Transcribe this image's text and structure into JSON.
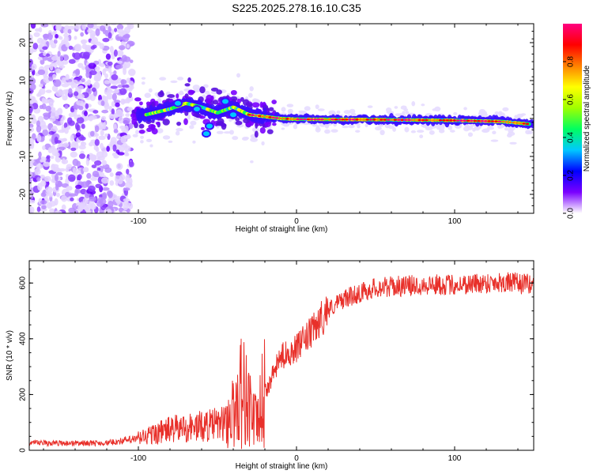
{
  "page_title": "S225.2025.278.16.10.C35",
  "chart_data": [
    {
      "type": "heatmap",
      "title": "S225.2025.278.16.10.C35",
      "xlabel": "Height of straight line (km)",
      "ylabel": "Frequency (Hz)",
      "xlim": [
        -169,
        150
      ],
      "ylim": [
        -25,
        25
      ],
      "x_ticks": [
        -100,
        0,
        100
      ],
      "y_ticks": [
        -20,
        -10,
        0,
        10,
        20
      ],
      "colorbar": {
        "label": "Normalized spectral amplitude",
        "range": [
          0,
          1
        ],
        "ticks": [
          0.0,
          0.2,
          0.4,
          0.6,
          0.8
        ],
        "colors": [
          "#ffffff",
          "#7a00ff",
          "#0000ff",
          "#00c8ff",
          "#00ff60",
          "#a0ff00",
          "#ffff00",
          "#ff8000",
          "#ff0000",
          "#ff0080"
        ]
      },
      "ridge": {
        "description_points_height_km": [
          -100,
          -80,
          -70,
          -60,
          -50,
          -40,
          -30,
          -20,
          -10,
          0,
          50,
          100,
          130,
          148
        ],
        "frequency_hz": [
          0.5,
          2.5,
          4,
          3,
          1.5,
          3,
          1,
          0.5,
          0,
          -0.2,
          -0.3,
          -0.5,
          -0.8,
          -1.5
        ]
      }
    },
    {
      "type": "line",
      "xlabel": "Height of straight line (km)",
      "ylabel": "SNR (10 * v/v)",
      "xlim": [
        -169,
        150
      ],
      "ylim": [
        0,
        680
      ],
      "x_ticks": [
        -100,
        0,
        100
      ],
      "y_ticks": [
        0,
        200,
        400,
        600
      ],
      "series": [
        {
          "name": "SNR",
          "color": "#e8302a",
          "anchor_x": [
            -169,
            -120,
            -100,
            -80,
            -60,
            -45,
            -40,
            -35,
            -30,
            -25,
            -20,
            -10,
            0,
            10,
            20,
            30,
            50,
            80,
            100,
            130,
            150
          ],
          "anchor_y": [
            25,
            25,
            40,
            70,
            80,
            90,
            120,
            200,
            150,
            80,
            200,
            330,
            360,
            420,
            500,
            540,
            580,
            590,
            590,
            600,
            590
          ]
        }
      ]
    }
  ]
}
